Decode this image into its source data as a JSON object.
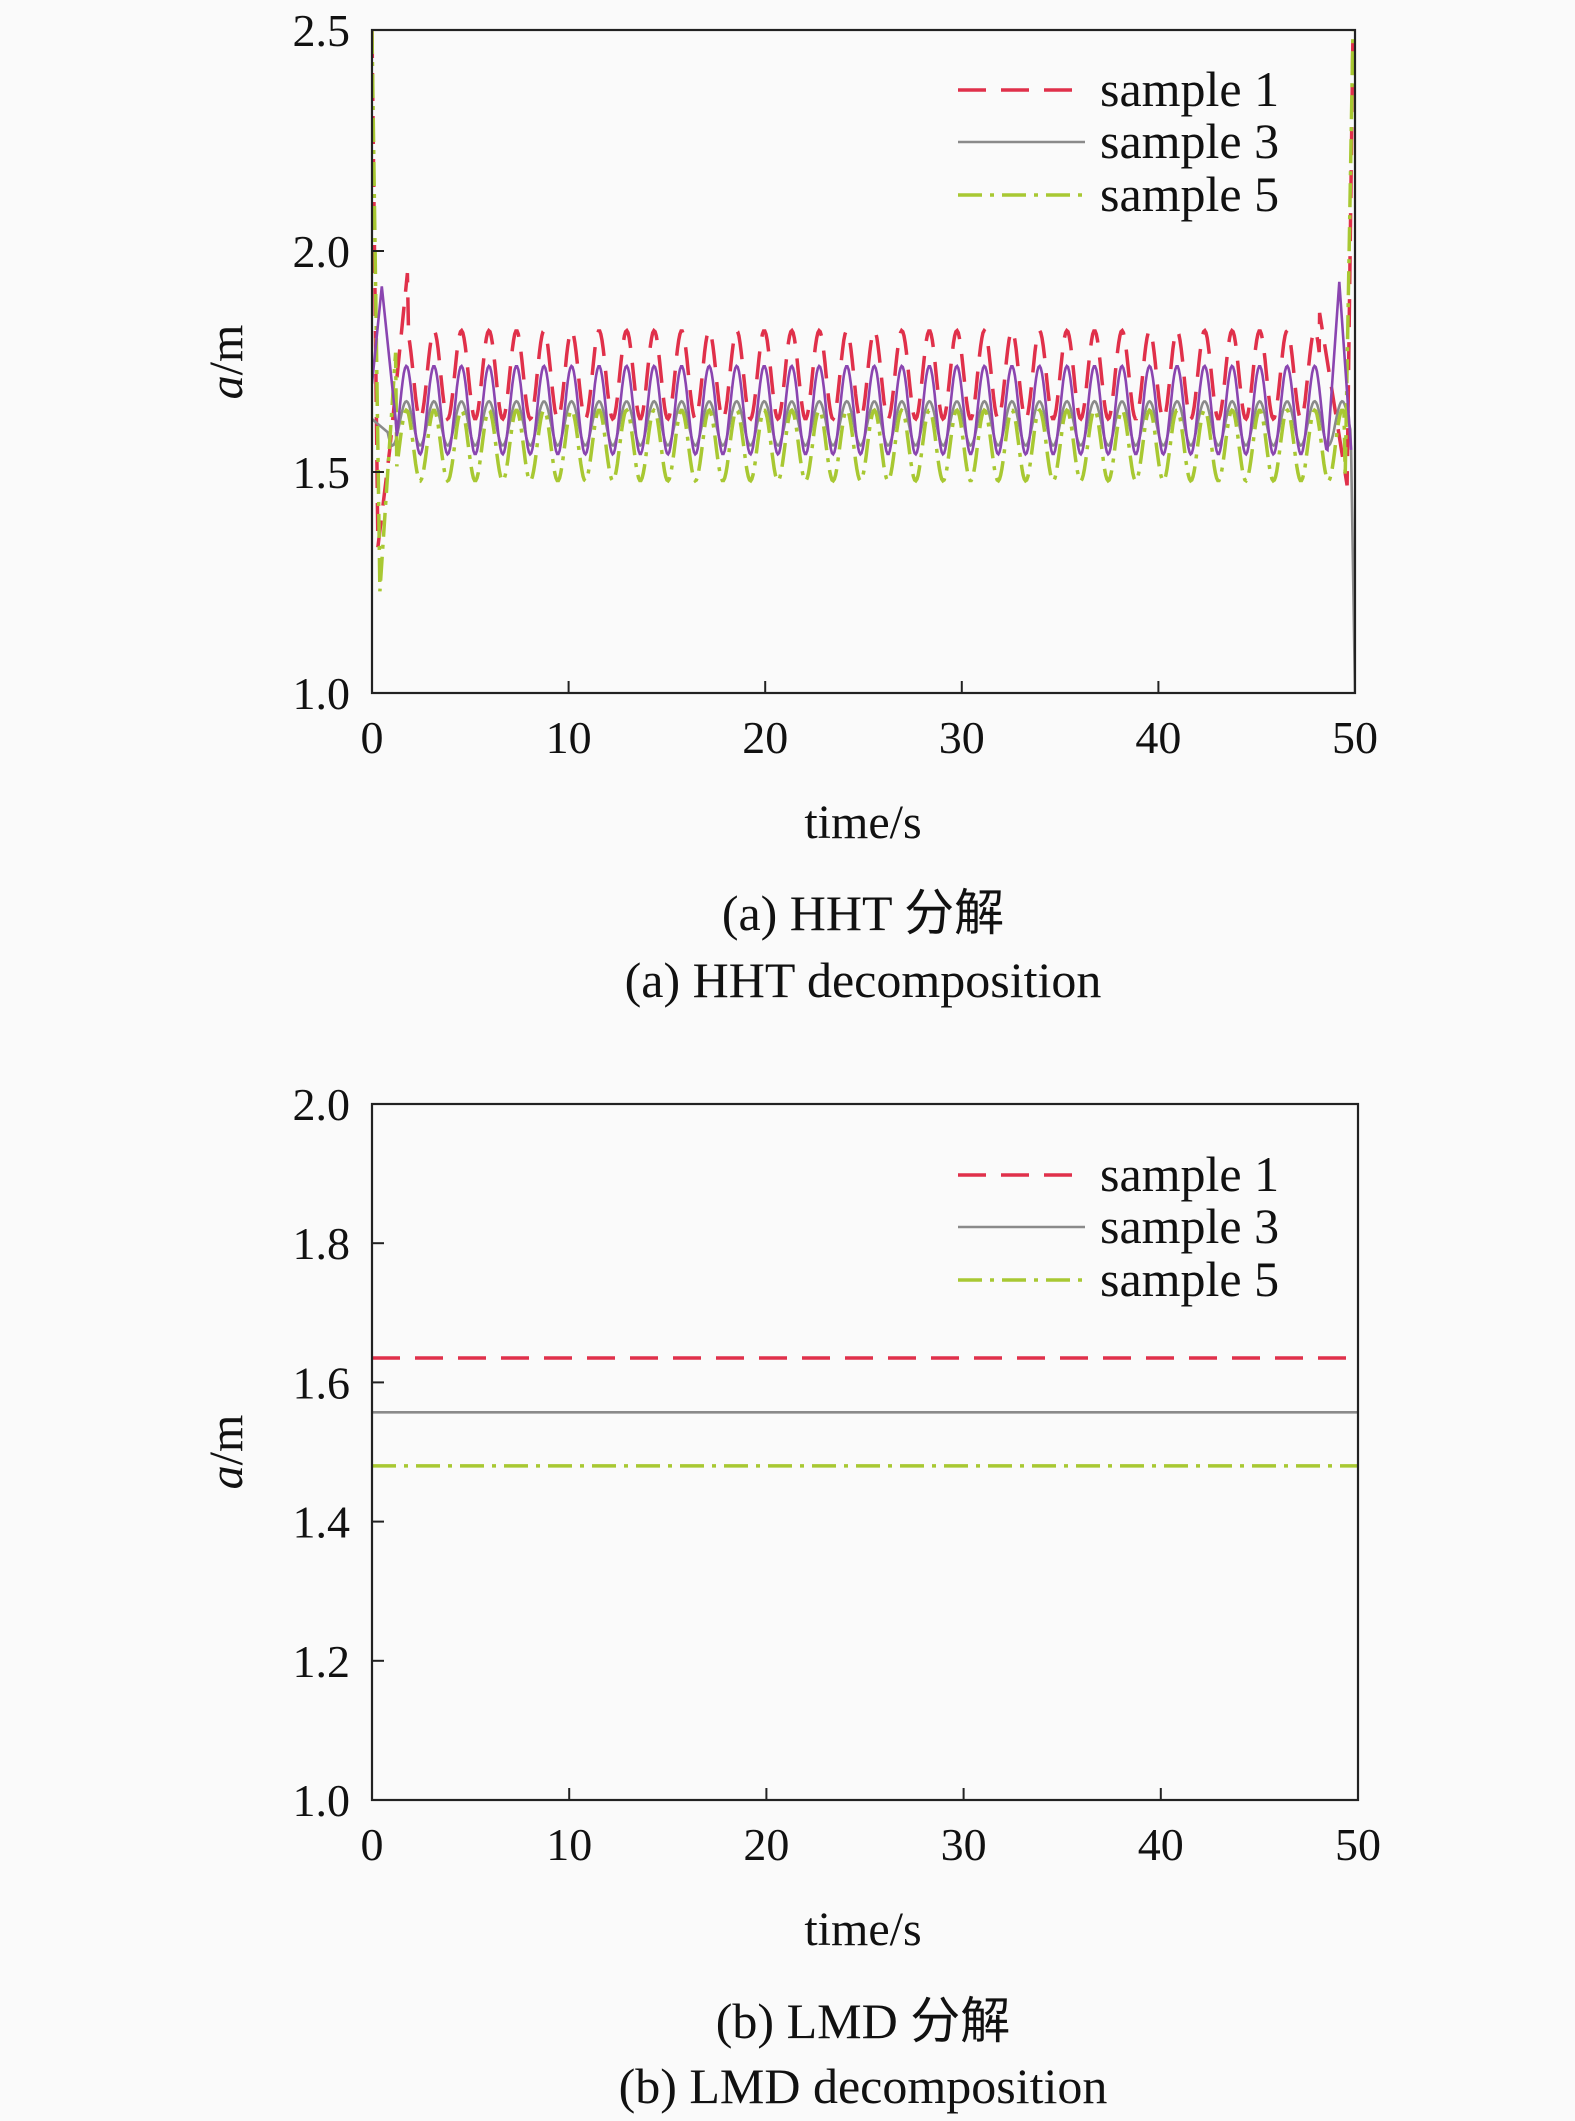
{
  "chart_data": [
    {
      "type": "line",
      "caption_cn": "(a) HHT 分解",
      "caption_en": "(a) HHT decomposition",
      "xlabel": "time/s",
      "ylabel_italic": "a",
      "ylabel_rest": "/m",
      "xlim": [
        0,
        50
      ],
      "ylim": [
        1.0,
        2.5
      ],
      "x_ticks": [
        "0",
        "10",
        "20",
        "30",
        "40",
        "50"
      ],
      "y_ticks": [
        "1.0",
        "1.5",
        "2.0",
        "2.5"
      ],
      "legend_position": "top-right",
      "grid": false,
      "series": [
        {
          "name": "sample 1",
          "color": "#e0304a",
          "style": "dashed",
          "mean": 1.72,
          "amplitude": 0.1,
          "period": 1.4,
          "start": [
            [
              0,
              2.5
            ],
            [
              0.3,
              1.33
            ],
            [
              0.9,
              1.55
            ],
            [
              1.8,
              1.95
            ]
          ],
          "end": [
            [
              48.2,
              1.86
            ],
            [
              49.6,
              1.47
            ],
            [
              49.9,
              2.5
            ]
          ]
        },
        {
          "name": "sample 3",
          "color": "#8a8a8a",
          "style": "solid",
          "mean": 1.61,
          "amplitude": 0.05,
          "period": 1.4,
          "start": [
            [
              0,
              1.62
            ],
            [
              0.8,
              1.59
            ]
          ],
          "end": [
            [
              49.8,
              1.55
            ],
            [
              50,
              1.0
            ]
          ]
        },
        {
          "name": "sample 5",
          "color": "#a8c832",
          "style": "dashdot",
          "mean": 1.56,
          "amplitude": 0.08,
          "period": 1.4,
          "start": [
            [
              0,
              2.5
            ],
            [
              0.4,
              1.23
            ],
            [
              1.2,
              1.77
            ]
          ],
          "end": [
            [
              49.5,
              1.49
            ],
            [
              49.9,
              2.5
            ]
          ]
        },
        {
          "name": "",
          "color": "#8a45b0",
          "style": "solid",
          "mean": 1.64,
          "amplitude": 0.1,
          "period": 1.4,
          "start": [
            [
              0,
              1.7
            ],
            [
              0.5,
              1.92
            ],
            [
              1.2,
              1.62
            ]
          ],
          "end": [
            [
              48.6,
              1.55
            ],
            [
              49.2,
              1.93
            ],
            [
              49.8,
              1.55
            ]
          ]
        }
      ]
    },
    {
      "type": "line",
      "caption_cn": "(b) LMD 分解",
      "caption_en": "(b) LMD decomposition",
      "xlabel": "time/s",
      "ylabel_italic": "a",
      "ylabel_rest": "/m",
      "xlim": [
        0,
        50
      ],
      "ylim": [
        1.0,
        2.0
      ],
      "x_ticks": [
        "0",
        "10",
        "20",
        "30",
        "40",
        "50"
      ],
      "y_ticks": [
        "1.0",
        "1.2",
        "1.4",
        "1.6",
        "1.8",
        "2.0"
      ],
      "legend_position": "top-right",
      "grid": false,
      "series": [
        {
          "name": "sample 1",
          "color": "#e0304a",
          "style": "dashed",
          "constant": 1.635
        },
        {
          "name": "sample 3",
          "color": "#8a8a8a",
          "style": "solid",
          "constant": 1.557
        },
        {
          "name": "sample 5",
          "color": "#a8c832",
          "style": "dashdot",
          "constant": 1.48
        }
      ]
    }
  ]
}
